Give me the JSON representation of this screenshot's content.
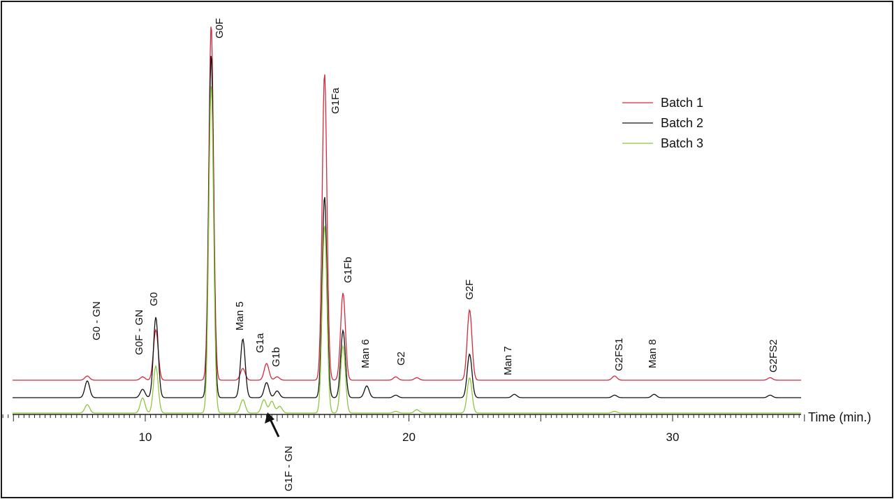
{
  "chart_data": {
    "type": "line",
    "title": "",
    "xlabel": "Time (min.)",
    "ylabel": "",
    "xlim": [
      4.6,
      35
    ],
    "x_tick_labels": [
      10,
      20,
      30
    ],
    "grid": false,
    "legend_position": "top-right",
    "legend": [
      "Batch 1",
      "Batch 2",
      "Batch 3"
    ],
    "series": [
      {
        "name": "Batch 1",
        "color": "#d42a3c",
        "peaks": [
          [
            7.8,
            2.5
          ],
          [
            9.9,
            2
          ],
          [
            10.4,
            30
          ],
          [
            12.5,
            212
          ],
          [
            13.7,
            7
          ],
          [
            14.6,
            10
          ],
          [
            15.0,
            2
          ],
          [
            16.8,
            183
          ],
          [
            17.5,
            52
          ],
          [
            19.5,
            2
          ],
          [
            20.3,
            1.5
          ],
          [
            22.3,
            42
          ],
          [
            27.8,
            2.5
          ],
          [
            33.7,
            1.5
          ]
        ]
      },
      {
        "name": "Batch 2",
        "color": "#111111",
        "peaks": [
          [
            7.8,
            10
          ],
          [
            9.9,
            5
          ],
          [
            10.4,
            48
          ],
          [
            12.5,
            205
          ],
          [
            13.7,
            35
          ],
          [
            14.6,
            9
          ],
          [
            15.0,
            4
          ],
          [
            16.8,
            120
          ],
          [
            17.5,
            40
          ],
          [
            18.4,
            7
          ],
          [
            19.5,
            1.5
          ],
          [
            22.3,
            26
          ],
          [
            24.0,
            2
          ],
          [
            27.8,
            1.5
          ],
          [
            29.3,
            2
          ],
          [
            33.7,
            1.5
          ]
        ]
      },
      {
        "name": "Batch 3",
        "color": "#8ec63f",
        "peaks": [
          [
            7.8,
            5
          ],
          [
            9.9,
            9
          ],
          [
            10.4,
            28
          ],
          [
            12.5,
            196
          ],
          [
            13.7,
            8
          ],
          [
            14.5,
            8
          ],
          [
            14.8,
            7
          ],
          [
            15.1,
            4
          ],
          [
            16.8,
            112
          ],
          [
            17.5,
            40
          ],
          [
            19.5,
            1
          ],
          [
            20.3,
            2
          ],
          [
            22.3,
            21
          ],
          [
            27.8,
            1
          ]
        ]
      }
    ],
    "annotations": [
      {
        "text": "G0 - GN",
        "x": 7.8
      },
      {
        "text": "G0F - GN",
        "x": 9.9
      },
      {
        "text": "G0",
        "x": 10.4
      },
      {
        "text": "G0F",
        "x": 12.5
      },
      {
        "text": "Man 5",
        "x": 13.7
      },
      {
        "text": "G1a",
        "x": 14.6
      },
      {
        "text": "G1b",
        "x": 15.1
      },
      {
        "text": "G1Fa",
        "x": 16.8
      },
      {
        "text": "G1Fb",
        "x": 17.5
      },
      {
        "text": "Man 6",
        "x": 18.4
      },
      {
        "text": "G2",
        "x": 19.5
      },
      {
        "text": "G2F",
        "x": 22.3
      },
      {
        "text": "Man 7",
        "x": 24.0
      },
      {
        "text": "G2FS1",
        "x": 27.8
      },
      {
        "text": "Man 8",
        "x": 29.3
      },
      {
        "text": "G2FS2",
        "x": 33.7
      },
      {
        "text": "G1F - GN",
        "x": 14.9
      }
    ]
  }
}
